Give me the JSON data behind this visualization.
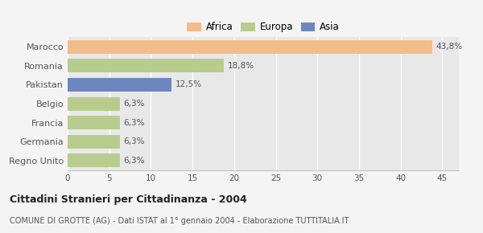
{
  "categories": [
    "Marocco",
    "Romania",
    "Pakistan",
    "Belgio",
    "Francia",
    "Germania",
    "Regno Unito"
  ],
  "values": [
    43.8,
    18.8,
    12.5,
    6.3,
    6.3,
    6.3,
    6.3
  ],
  "labels": [
    "43,8%",
    "18,8%",
    "12,5%",
    "6,3%",
    "6,3%",
    "6,3%",
    "6,3%"
  ],
  "colors": [
    "#f2bc8a",
    "#b8cc8e",
    "#6e86c0",
    "#b8cc8e",
    "#b8cc8e",
    "#b8cc8e",
    "#b8cc8e"
  ],
  "legend_items": [
    {
      "label": "Africa",
      "color": "#f2bc8a"
    },
    {
      "label": "Europa",
      "color": "#b8cc8e"
    },
    {
      "label": "Asia",
      "color": "#6e86c0"
    }
  ],
  "title": "Cittadini Stranieri per Cittadinanza - 2004",
  "subtitle": "COMUNE DI GROTTE (AG) - Dati ISTAT al 1° gennaio 2004 - Elaborazione TUTTITALIA.IT",
  "xlim": [
    0,
    47
  ],
  "xticks": [
    0,
    5,
    10,
    15,
    20,
    25,
    30,
    35,
    40,
    45
  ],
  "background_color": "#f4f4f4",
  "plot_bg_color": "#e8e8e8",
  "grid_color": "#ffffff",
  "bar_height": 0.72,
  "label_fontsize": 7.5,
  "ytick_fontsize": 8,
  "xtick_fontsize": 7.5,
  "title_fontsize": 9,
  "subtitle_fontsize": 7
}
